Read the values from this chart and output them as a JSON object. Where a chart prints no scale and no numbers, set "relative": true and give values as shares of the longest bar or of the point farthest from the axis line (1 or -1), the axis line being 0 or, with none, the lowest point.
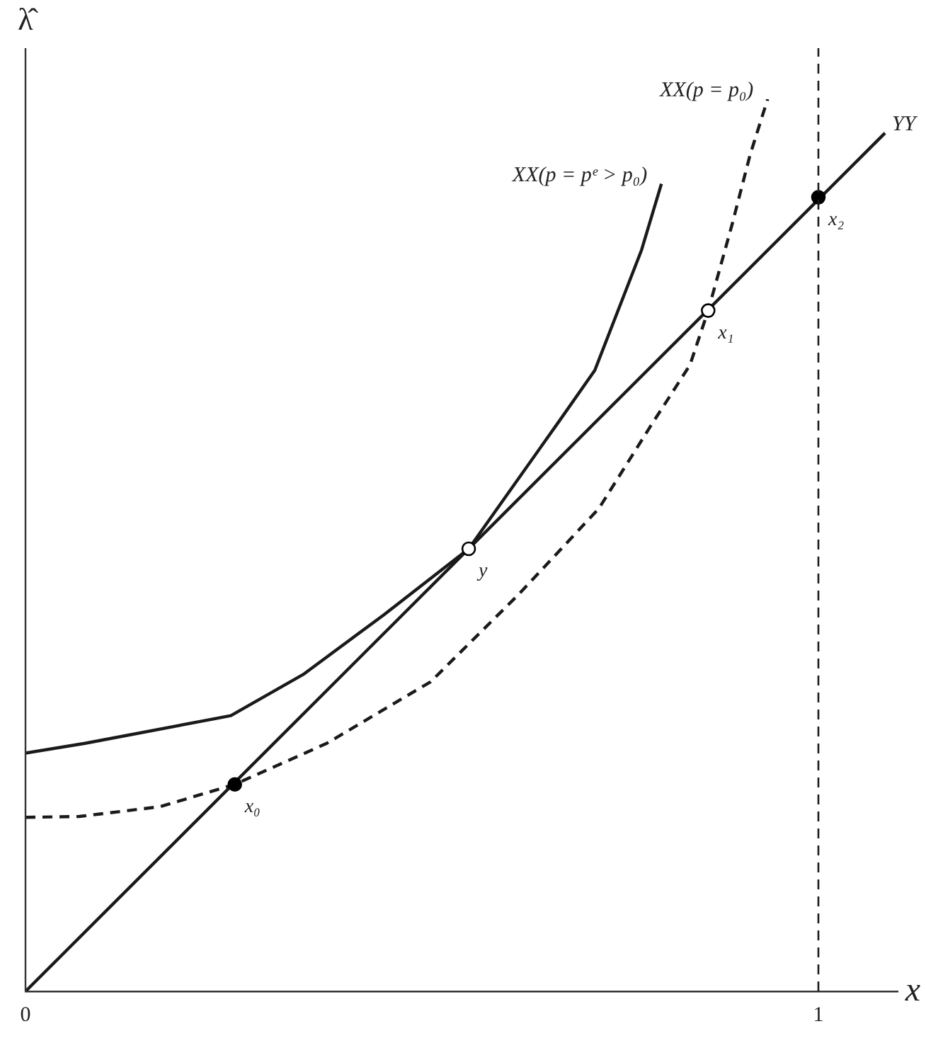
{
  "chart_data": {
    "type": "line",
    "relative": true,
    "xlabel": "x",
    "ylabel": "λ̂",
    "xlim": [
      0,
      1.1
    ],
    "xticks": [
      0,
      1
    ],
    "grid": false,
    "legend": false,
    "marker": "none",
    "series": [
      {
        "name": "XX(p = pᵉ > p₀)",
        "color": "#1a1a1a",
        "line_style": "solid",
        "x": [
          0,
          0.075,
          0.259,
          0.35,
          0.452,
          0.559,
          0.673,
          0.718,
          0.777,
          0.802
        ],
        "values": [
          0.267,
          0.278,
          0.309,
          0.355,
          0.422,
          0.496,
          0.639,
          0.696,
          0.831,
          0.905
        ]
      },
      {
        "name": "XX(p = p₀)",
        "color": "#1a1a1a",
        "line_style": "dashed",
        "x": [
          0,
          0.068,
          0.17,
          0.264,
          0.38,
          0.511,
          0.621,
          0.723,
          0.788,
          0.838,
          0.861,
          0.891,
          0.914,
          0.936
        ],
        "values": [
          0.195,
          0.196,
          0.207,
          0.232,
          0.278,
          0.347,
          0.444,
          0.541,
          0.633,
          0.702,
          0.763,
          0.859,
          0.938,
          1.0
        ]
      },
      {
        "name": "YY",
        "color": "#1a1a1a",
        "line_style": "solid",
        "x": [
          0,
          1.084
        ],
        "values": [
          0,
          0.962
        ]
      },
      {
        "type": "scatter",
        "marker": "circle",
        "color": "#000000",
        "colors": [
          "#000000",
          "#ffffff",
          "#ffffff",
          "#000000"
        ],
        "x": [
          0.264,
          0.559,
          0.861,
          1.0
        ],
        "values": [
          0.232,
          0.496,
          0.763,
          0.89
        ]
      }
    ],
    "ref_lines": [
      {
        "axis": "x",
        "value": 1,
        "line_style": "dashed",
        "color": "#1a1a1a"
      }
    ],
    "annotations": [
      {
        "text": "x₀",
        "x": 0.264,
        "y": 0.232
      },
      {
        "text": "y",
        "x": 0.559,
        "y": 0.496
      },
      {
        "text": "x₁",
        "x": 0.861,
        "y": 0.763
      },
      {
        "text": "x₂",
        "x": 1.0,
        "y": 0.89
      }
    ]
  }
}
